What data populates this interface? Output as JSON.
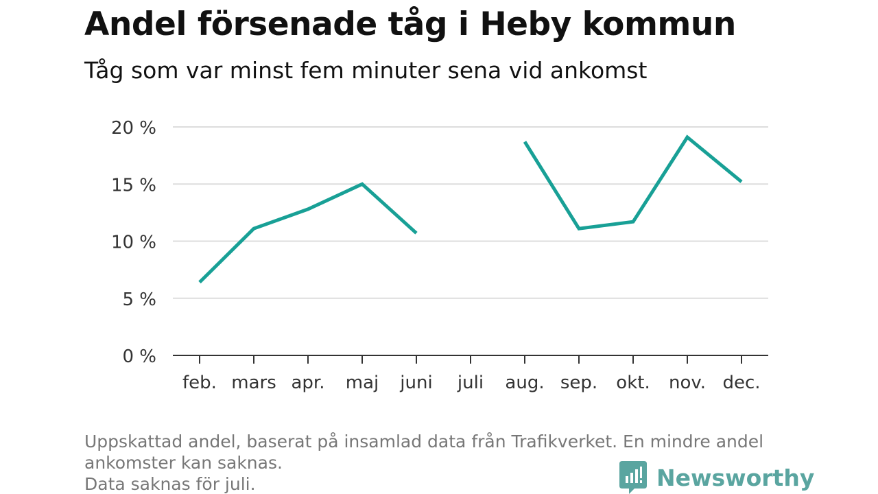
{
  "title": "Andel försenade tåg i Heby kommun",
  "subtitle": "Tåg som var minst fem minuter sena vid ankomst",
  "notes": [
    "Uppskattad andel, baserat på insamlad data från Trafikverket. En mindre andel",
    "ankomster kan saknas.",
    "Data saknas för juli."
  ],
  "brand": {
    "name": "Newsworthy",
    "icon": "newsworthy-logo-icon",
    "color": "#5aa5a0"
  },
  "chart_data": {
    "type": "line",
    "title": "Andel försenade tåg i Heby kommun",
    "subtitle": "Tåg som var minst fem minuter sena vid ankomst",
    "categories": [
      "feb.",
      "mars",
      "apr.",
      "maj",
      "juni",
      "juli",
      "aug.",
      "sep.",
      "okt.",
      "nov.",
      "dec."
    ],
    "series": [
      {
        "values": [
          6.4,
          11.1,
          12.8,
          15.0,
          10.7,
          null,
          18.7,
          11.1,
          11.7,
          19.1,
          15.2
        ],
        "color": "#18a096"
      }
    ],
    "ylim": [
      0,
      20
    ],
    "yticks": [
      0,
      5,
      10,
      15,
      20
    ],
    "ytick_labels": [
      "0 %",
      "5 %",
      "10 %",
      "15 %",
      "20 %"
    ],
    "grid": true,
    "legend": "none"
  }
}
